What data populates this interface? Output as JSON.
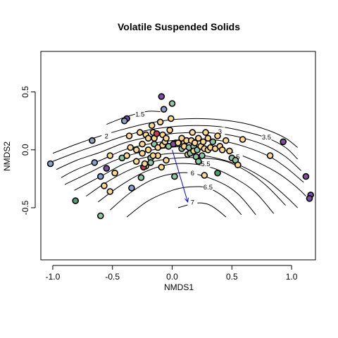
{
  "chart_data": {
    "type": "scatter",
    "title": "Volatile Suspended Solids",
    "xlabel": "NMDS1",
    "ylabel": "NMDS2",
    "xlim": [
      -1.1,
      1.2
    ],
    "ylim": [
      -0.95,
      0.85
    ],
    "x_ticks": [
      -1.0,
      -0.5,
      0.0,
      0.5,
      1.0
    ],
    "x_tick_labels": [
      "-1.0",
      "-0.5",
      "0.0",
      "0.5",
      "1.0"
    ],
    "y_ticks": [
      -0.5,
      0.0,
      0.5
    ],
    "y_tick_labels": [
      "-0.5",
      "0.0",
      "0.5"
    ],
    "grid": false,
    "legend": "none",
    "palette": {
      "purple": "#7b4f9d",
      "red": "#c93a4a",
      "yellow": "#fdd98b",
      "teal": "#8fc4a6",
      "green": "#4f9e6e",
      "blue_gray": "#8a9fc4"
    },
    "vector": {
      "from": [
        0.0,
        0.0
      ],
      "to": [
        0.13,
        -0.45
      ],
      "color": "#0000ff"
    },
    "contours": [
      {
        "level": "1.5",
        "label_at": [
          -0.27,
          0.31
        ],
        "points": [
          [
            -0.55,
            0.22
          ],
          [
            -0.4,
            0.28
          ],
          [
            -0.22,
            0.33
          ],
          [
            -0.1,
            0.33
          ]
        ]
      },
      {
        "level": "2",
        "label_at": [
          -0.55,
          0.12
        ],
        "points": [
          [
            -1.0,
            -0.03
          ],
          [
            -0.8,
            0.05
          ],
          [
            -0.6,
            0.12
          ],
          [
            -0.4,
            0.18
          ],
          [
            -0.2,
            0.23
          ],
          [
            0.0,
            0.26
          ],
          [
            0.2,
            0.27
          ],
          [
            0.4,
            0.26
          ],
          [
            0.6,
            0.23
          ],
          [
            0.8,
            0.17
          ],
          [
            0.95,
            0.1
          ],
          [
            1.05,
            0.02
          ]
        ]
      },
      {
        "level": "2.5",
        "label_at": null,
        "points": [
          [
            -1.0,
            -0.1
          ],
          [
            -0.8,
            -0.02
          ],
          [
            -0.6,
            0.05
          ],
          [
            -0.4,
            0.12
          ],
          [
            -0.2,
            0.17
          ],
          [
            0.0,
            0.2
          ],
          [
            0.2,
            0.21
          ],
          [
            0.4,
            0.2
          ],
          [
            0.6,
            0.16
          ],
          [
            0.8,
            0.1
          ],
          [
            0.95,
            0.02
          ],
          [
            1.05,
            -0.08
          ]
        ]
      },
      {
        "level": "3",
        "label_at": [
          0.4,
          0.16
        ],
        "points": [
          [
            -0.97,
            -0.17
          ],
          [
            -0.8,
            -0.09
          ],
          [
            -0.6,
            -0.02
          ],
          [
            -0.4,
            0.06
          ],
          [
            -0.2,
            0.11
          ],
          [
            0.0,
            0.14
          ],
          [
            0.2,
            0.15
          ],
          [
            0.4,
            0.14
          ],
          [
            0.6,
            0.1
          ],
          [
            0.8,
            0.03
          ],
          [
            0.95,
            -0.06
          ],
          [
            1.08,
            -0.18
          ]
        ]
      },
      {
        "level": "3.5",
        "label_at": [
          0.79,
          0.11
        ],
        "points": [
          [
            -0.93,
            -0.24
          ],
          [
            -0.8,
            -0.17
          ],
          [
            -0.6,
            -0.09
          ],
          [
            -0.4,
            0.0
          ],
          [
            -0.2,
            0.05
          ],
          [
            0.0,
            0.08
          ],
          [
            0.2,
            0.09
          ],
          [
            0.4,
            0.08
          ],
          [
            0.6,
            0.03
          ],
          [
            0.8,
            -0.05
          ],
          [
            0.95,
            -0.15
          ],
          [
            1.1,
            -0.28
          ]
        ]
      },
      {
        "level": "4",
        "label_at": null,
        "points": [
          [
            -0.9,
            -0.3
          ],
          [
            -0.7,
            -0.2
          ],
          [
            -0.5,
            -0.1
          ],
          [
            -0.3,
            -0.03
          ],
          [
            -0.1,
            0.01
          ],
          [
            0.1,
            0.03
          ],
          [
            0.3,
            0.02
          ],
          [
            0.5,
            -0.02
          ],
          [
            0.7,
            -0.1
          ],
          [
            0.9,
            -0.21
          ],
          [
            1.05,
            -0.33
          ],
          [
            1.12,
            -0.4
          ]
        ]
      },
      {
        "level": "4.5",
        "label_at": null,
        "points": [
          [
            -0.82,
            -0.35
          ],
          [
            -0.6,
            -0.23
          ],
          [
            -0.4,
            -0.12
          ],
          [
            -0.2,
            -0.06
          ],
          [
            0.0,
            -0.03
          ],
          [
            0.2,
            -0.04
          ],
          [
            0.4,
            -0.08
          ],
          [
            0.6,
            -0.15
          ],
          [
            0.8,
            -0.27
          ],
          [
            0.95,
            -0.4
          ],
          [
            1.05,
            -0.5
          ]
        ]
      },
      {
        "level": "5",
        "label_at": [
          0.55,
          -0.06
        ],
        "points": [
          [
            -0.72,
            -0.4
          ],
          [
            -0.55,
            -0.28
          ],
          [
            -0.35,
            -0.17
          ],
          [
            -0.15,
            -0.1
          ],
          [
            0.05,
            -0.07
          ],
          [
            0.25,
            -0.07
          ],
          [
            0.45,
            -0.1
          ],
          [
            0.65,
            -0.2
          ],
          [
            0.8,
            -0.32
          ],
          [
            0.95,
            -0.48
          ]
        ]
      },
      {
        "level": "5.5",
        "label_at": [
          0.28,
          -0.12
        ],
        "points": [
          [
            -0.62,
            -0.45
          ],
          [
            -0.45,
            -0.32
          ],
          [
            -0.25,
            -0.2
          ],
          [
            -0.05,
            -0.13
          ],
          [
            0.15,
            -0.12
          ],
          [
            0.35,
            -0.16
          ],
          [
            0.55,
            -0.26
          ],
          [
            0.7,
            -0.37
          ],
          [
            0.85,
            -0.55
          ]
        ]
      },
      {
        "level": "6",
        "label_at": [
          0.17,
          -0.2
        ],
        "points": [
          [
            -0.52,
            -0.52
          ],
          [
            -0.35,
            -0.37
          ],
          [
            -0.15,
            -0.25
          ],
          [
            0.05,
            -0.2
          ],
          [
            0.2,
            -0.21
          ],
          [
            0.4,
            -0.28
          ],
          [
            0.55,
            -0.38
          ],
          [
            0.7,
            -0.56
          ]
        ]
      },
      {
        "level": "6.5",
        "label_at": [
          0.3,
          -0.32
        ],
        "points": [
          [
            -0.38,
            -0.58
          ],
          [
            -0.2,
            -0.44
          ],
          [
            0.0,
            -0.35
          ],
          [
            0.15,
            -0.32
          ],
          [
            0.3,
            -0.33
          ],
          [
            0.45,
            -0.42
          ],
          [
            0.58,
            -0.56
          ]
        ]
      },
      {
        "level": "7",
        "label_at": [
          0.17,
          -0.45
        ],
        "points": [
          [
            0.05,
            -0.5
          ],
          [
            0.2,
            -0.46
          ],
          [
            0.3,
            -0.47
          ],
          [
            0.38,
            -0.52
          ],
          [
            0.45,
            -0.58
          ]
        ]
      }
    ],
    "points": [
      {
        "x": -1.02,
        "y": -0.12,
        "color": "#8a9fc4"
      },
      {
        "x": -0.67,
        "y": 0.08,
        "color": "#8a9fc4"
      },
      {
        "x": -0.65,
        "y": -0.11,
        "color": "#8a9fc4"
      },
      {
        "x": -0.6,
        "y": -0.23,
        "color": "#8a9fc4"
      },
      {
        "x": -0.55,
        "y": -0.16,
        "color": "#7b4f9d"
      },
      {
        "x": -0.57,
        "y": -0.31,
        "color": "#fdd98b"
      },
      {
        "x": -0.52,
        "y": -0.36,
        "color": "#fdd98b"
      },
      {
        "x": -0.6,
        "y": -0.57,
        "color": "#8fc4a6"
      },
      {
        "x": -0.81,
        "y": -0.44,
        "color": "#4f9e6e"
      },
      {
        "x": -0.52,
        "y": -0.05,
        "color": "#fdd98b"
      },
      {
        "x": -0.48,
        "y": -0.2,
        "color": "#fdd98b"
      },
      {
        "x": -0.42,
        "y": -0.07,
        "color": "#8fc4a6"
      },
      {
        "x": -0.38,
        "y": 0.27,
        "color": "#7b4f9d"
      },
      {
        "x": -0.4,
        "y": 0.25,
        "color": "#8a9fc4"
      },
      {
        "x": -0.36,
        "y": 0.12,
        "color": "#fdd98b"
      },
      {
        "x": -0.35,
        "y": 0.02,
        "color": "#fdd98b"
      },
      {
        "x": -0.38,
        "y": -0.05,
        "color": "#fdd98b"
      },
      {
        "x": -0.3,
        "y": 0.0,
        "color": "#fdd98b"
      },
      {
        "x": -0.3,
        "y": -0.1,
        "color": "#fdd98b"
      },
      {
        "x": -0.34,
        "y": -0.33,
        "color": "#8a9fc4"
      },
      {
        "x": -0.27,
        "y": 0.15,
        "color": "#fdd98b"
      },
      {
        "x": -0.25,
        "y": 0.05,
        "color": "#fdd98b"
      },
      {
        "x": -0.25,
        "y": -0.03,
        "color": "#fdd98b"
      },
      {
        "x": -0.26,
        "y": -0.24,
        "color": "#8fc4a6"
      },
      {
        "x": -0.22,
        "y": 0.13,
        "color": "#fdd98b"
      },
      {
        "x": -0.2,
        "y": 0.1,
        "color": "#fdd98b"
      },
      {
        "x": -0.2,
        "y": 0.0,
        "color": "#fdd98b"
      },
      {
        "x": -0.22,
        "y": -0.14,
        "color": "#fdd98b"
      },
      {
        "x": -0.24,
        "y": -0.15,
        "color": "#c93a4a"
      },
      {
        "x": -0.23,
        "y": -0.12,
        "color": "#fdd98b"
      },
      {
        "x": -0.18,
        "y": -0.07,
        "color": "#8fc4a6"
      },
      {
        "x": -0.17,
        "y": 0.21,
        "color": "#fdd98b"
      },
      {
        "x": -0.16,
        "y": 0.15,
        "color": "#fdd98b"
      },
      {
        "x": -0.15,
        "y": 0.05,
        "color": "#8fc4a6"
      },
      {
        "x": -0.15,
        "y": 0.1,
        "color": "#fdd98b"
      },
      {
        "x": -0.13,
        "y": 0.14,
        "color": "#c93a4a"
      },
      {
        "x": -0.12,
        "y": 0.02,
        "color": "#fdd98b"
      },
      {
        "x": -0.12,
        "y": -0.05,
        "color": "#fdd98b"
      },
      {
        "x": -0.16,
        "y": -0.05,
        "color": "#fdd98b"
      },
      {
        "x": -0.09,
        "y": -0.15,
        "color": "#fdd98b"
      },
      {
        "x": -0.18,
        "y": -0.11,
        "color": "#8fc4a6"
      },
      {
        "x": -0.1,
        "y": 0.24,
        "color": "#fdd98b"
      },
      {
        "x": -0.08,
        "y": 0.13,
        "color": "#fdd98b"
      },
      {
        "x": -0.08,
        "y": 0.04,
        "color": "#fdd98b"
      },
      {
        "x": -0.06,
        "y": 0.07,
        "color": "#fdd98b"
      },
      {
        "x": -0.05,
        "y": 0.1,
        "color": "#fdd98b"
      },
      {
        "x": -0.03,
        "y": 0.03,
        "color": "#8fc4a6"
      },
      {
        "x": -0.02,
        "y": 0.17,
        "color": "#fdd98b"
      },
      {
        "x": -0.01,
        "y": 0.27,
        "color": "#fdd98b"
      },
      {
        "x": -0.09,
        "y": 0.46,
        "color": "#7b4f9d"
      },
      {
        "x": -0.07,
        "y": 0.35,
        "color": "#8a9fc4"
      },
      {
        "x": 0.0,
        "y": 0.4,
        "color": "#8fc4a6"
      },
      {
        "x": 0.03,
        "y": 0.06,
        "color": "#c93a4a"
      },
      {
        "x": 0.01,
        "y": 0.05,
        "color": "#7b4f9d"
      },
      {
        "x": 0.05,
        "y": 0.06,
        "color": "#fdd98b"
      },
      {
        "x": 0.08,
        "y": 0.1,
        "color": "#fdd98b"
      },
      {
        "x": 0.08,
        "y": 0.01,
        "color": "#8fc4a6"
      },
      {
        "x": 0.1,
        "y": 0.06,
        "color": "#fdd98b"
      },
      {
        "x": 0.1,
        "y": 0.03,
        "color": "#fdd98b"
      },
      {
        "x": 0.12,
        "y": 0.08,
        "color": "#fdd98b"
      },
      {
        "x": 0.13,
        "y": -0.04,
        "color": "#fdd98b"
      },
      {
        "x": 0.14,
        "y": 0.02,
        "color": "#8fc4a6"
      },
      {
        "x": 0.15,
        "y": -0.03,
        "color": "#8fc4a6"
      },
      {
        "x": 0.16,
        "y": 0.08,
        "color": "#fdd98b"
      },
      {
        "x": 0.17,
        "y": 0.15,
        "color": "#fdd98b"
      },
      {
        "x": 0.18,
        "y": 0.03,
        "color": "#8fc4a6"
      },
      {
        "x": 0.18,
        "y": -0.01,
        "color": "#fdd98b"
      },
      {
        "x": 0.19,
        "y": 0.06,
        "color": "#fdd98b"
      },
      {
        "x": 0.2,
        "y": -0.06,
        "color": "#8fc4a6"
      },
      {
        "x": 0.21,
        "y": 0.0,
        "color": "#8fc4a6"
      },
      {
        "x": 0.22,
        "y": 0.1,
        "color": "#fdd98b"
      },
      {
        "x": 0.22,
        "y": -0.1,
        "color": "#8fc4a6"
      },
      {
        "x": 0.24,
        "y": 0.03,
        "color": "#fdd98b"
      },
      {
        "x": 0.25,
        "y": -0.05,
        "color": "#8fc4a6"
      },
      {
        "x": 0.26,
        "y": 0.07,
        "color": "#fdd98b"
      },
      {
        "x": 0.27,
        "y": 0.01,
        "color": "#fdd98b"
      },
      {
        "x": 0.28,
        "y": 0.15,
        "color": "#fdd98b"
      },
      {
        "x": 0.3,
        "y": 0.0,
        "color": "#fdd98b"
      },
      {
        "x": 0.3,
        "y": 0.1,
        "color": "#fdd98b"
      },
      {
        "x": 0.32,
        "y": 0.02,
        "color": "#fdd98b"
      },
      {
        "x": 0.34,
        "y": 0.07,
        "color": "#8fc4a6"
      },
      {
        "x": 0.36,
        "y": 0.01,
        "color": "#fdd98b"
      },
      {
        "x": 0.38,
        "y": 0.12,
        "color": "#fdd98b"
      },
      {
        "x": 0.4,
        "y": 0.03,
        "color": "#fdd98b"
      },
      {
        "x": 0.42,
        "y": 0.0,
        "color": "#fdd98b"
      },
      {
        "x": 0.45,
        "y": 0.08,
        "color": "#fdd98b"
      },
      {
        "x": 0.48,
        "y": -0.01,
        "color": "#fdd98b"
      },
      {
        "x": 0.5,
        "y": -0.07,
        "color": "#8fc4a6"
      },
      {
        "x": 0.53,
        "y": -0.09,
        "color": "#8fc4a6"
      },
      {
        "x": 0.55,
        "y": -0.13,
        "color": "#fdd98b"
      },
      {
        "x": 0.59,
        "y": 0.09,
        "color": "#fdd98b"
      },
      {
        "x": 0.38,
        "y": -0.2,
        "color": "#4f9e6e"
      },
      {
        "x": 0.27,
        "y": -0.22,
        "color": "#fdd98b"
      },
      {
        "x": 0.02,
        "y": -0.23,
        "color": "#8fc4a6"
      },
      {
        "x": -0.05,
        "y": -0.09,
        "color": "#fdd98b"
      },
      {
        "x": 0.82,
        "y": -0.05,
        "color": "#fdd98b"
      },
      {
        "x": 0.93,
        "y": 0.07,
        "color": "#7b4f9d"
      },
      {
        "x": 1.12,
        "y": -0.23,
        "color": "#7b4f9d"
      },
      {
        "x": 1.16,
        "y": -0.39,
        "color": "#7b4f9d"
      },
      {
        "x": 1.15,
        "y": -0.42,
        "color": "#7b4f9d"
      }
    ]
  }
}
